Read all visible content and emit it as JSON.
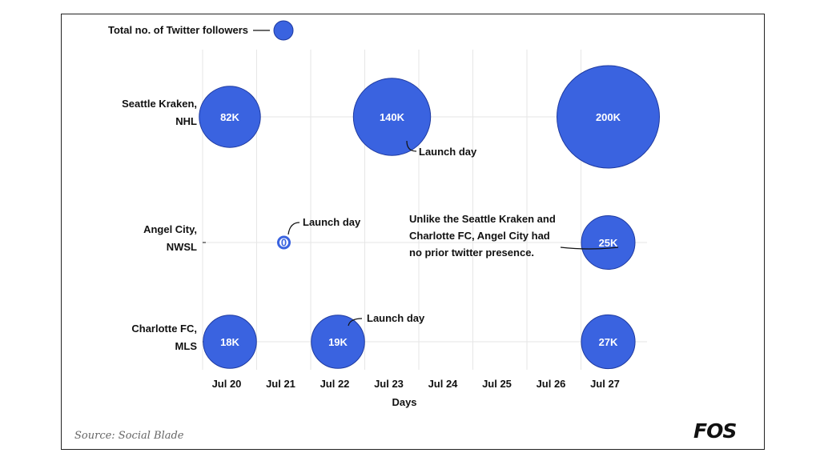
{
  "chart_data": {
    "type": "scatter",
    "subtype": "bubble",
    "title": "",
    "xlabel": "Days",
    "ylabel": "",
    "x_categories": [
      "Jul 20",
      "Jul 21",
      "Jul 22",
      "Jul 23",
      "Jul 24",
      "Jul 25",
      "Jul 26",
      "Jul 27"
    ],
    "y_categories": [
      "Seattle Kraken,\nNHL",
      "Angel City,\nNWSL",
      "Charlotte FC,\nMLS"
    ],
    "size_legend": {
      "label": "Total no. of Twitter followers"
    },
    "series": [
      {
        "team": "Seattle Kraken,\nNHL",
        "points": [
          {
            "x": "Jul 20",
            "value": 82000,
            "label": "82K"
          },
          {
            "x": "Jul 23",
            "value": 140000,
            "label": "140K"
          },
          {
            "x": "Jul 27",
            "value": 200000,
            "label": "200K"
          }
        ]
      },
      {
        "team": "Angel City,\nNWSL",
        "points": [
          {
            "x": "Jul 21",
            "value": 0,
            "label": "0"
          },
          {
            "x": "Jul 27",
            "value": 25000,
            "label": "25K"
          }
        ]
      },
      {
        "team": "Charlotte FC,\nMLS",
        "points": [
          {
            "x": "Jul 20",
            "value": 18000,
            "label": "18K"
          },
          {
            "x": "Jul 22",
            "value": 19000,
            "label": "19K"
          },
          {
            "x": "Jul 27",
            "value": 27000,
            "label": "27K"
          }
        ]
      }
    ],
    "annotations": [
      {
        "text": "Launch day",
        "team": "Seattle Kraken,\nNHL",
        "x": "Jul 23"
      },
      {
        "text": "Launch day",
        "team": "Angel City,\nNWSL",
        "x": "Jul 21"
      },
      {
        "text": "Launch day",
        "team": "Charlotte FC,\nMLS",
        "x": "Jul 22"
      },
      {
        "text": "Unlike the Seattle Kraken and\nCharlotte FC, Angel City had\nno prior twitter presence.",
        "team": "Angel City,\nNWSL",
        "x": "Jul 27"
      }
    ],
    "colors": {
      "bubble": "#3a63e0",
      "bubble_stroke": "#1e3aa0",
      "grid": "#e6e6e6",
      "text": "#111111"
    },
    "grid": true
  },
  "footer": {
    "source": "Source: Social Blade",
    "logo": "FOS"
  }
}
